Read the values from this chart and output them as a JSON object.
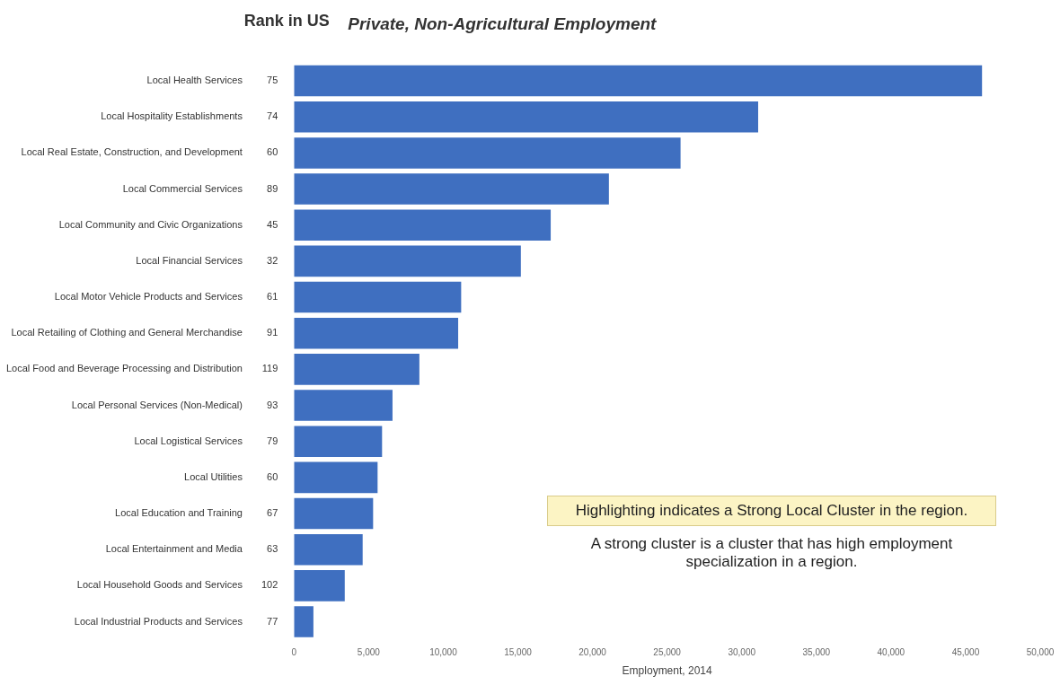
{
  "chart_data": {
    "type": "bar",
    "orientation": "horizontal",
    "title": "Private, Non-Agricultural Employment",
    "y2label": "Rank in US",
    "xlabel": "Employment, 2014",
    "categories": [
      "Local Health Services",
      "Local Hospitality Establishments",
      "Local Real Estate, Construction, and Development",
      "Local Commercial Services",
      "Local Community and Civic Organizations",
      "Local Financial Services",
      "Local Motor Vehicle Products and Services",
      "Local Retailing of Clothing and General Merchandise",
      "Local Food and Beverage Processing and Distribution",
      "Local Personal Services (Non-Medical)",
      "Local Logistical Services",
      "Local Utilities",
      "Local Education and Training",
      "Local Entertainment and Media",
      "Local Household Goods and Services",
      "Local Industrial Products and Services"
    ],
    "y2_categories": [
      "75",
      "74",
      "60",
      "89",
      "45",
      "32",
      "61",
      "91",
      "119",
      "93",
      "79",
      "60",
      "67",
      "63",
      "102",
      "77"
    ],
    "values": [
      46100,
      31100,
      25900,
      21100,
      17200,
      15200,
      11200,
      11000,
      8400,
      6600,
      5900,
      5600,
      5300,
      4600,
      3400,
      1300
    ],
    "color": "#3f6fc0",
    "xlim": [
      0,
      50000
    ],
    "xticks": [
      0,
      {
        "value": 5000,
        "label": "5,000"
      },
      {
        "value": 10000,
        "label": "10,000"
      },
      {
        "value": 15000,
        "label": "15,000"
      },
      {
        "value": 20000,
        "label": "20,000"
      },
      {
        "value": 25000,
        "label": "25,000"
      },
      {
        "value": 30000,
        "label": "30,000"
      },
      {
        "value": 35000,
        "label": "35,000"
      },
      {
        "value": 40000,
        "label": "40,000"
      },
      {
        "value": 45000,
        "label": "45,000"
      },
      {
        "value": 50000,
        "label": "50,000"
      }
    ],
    "grid": false,
    "legend": false,
    "annotations": [
      "Highlighting indicates a Strong Local Cluster in the region.",
      "A strong cluster is a cluster that has high employment specialization in a region."
    ]
  }
}
